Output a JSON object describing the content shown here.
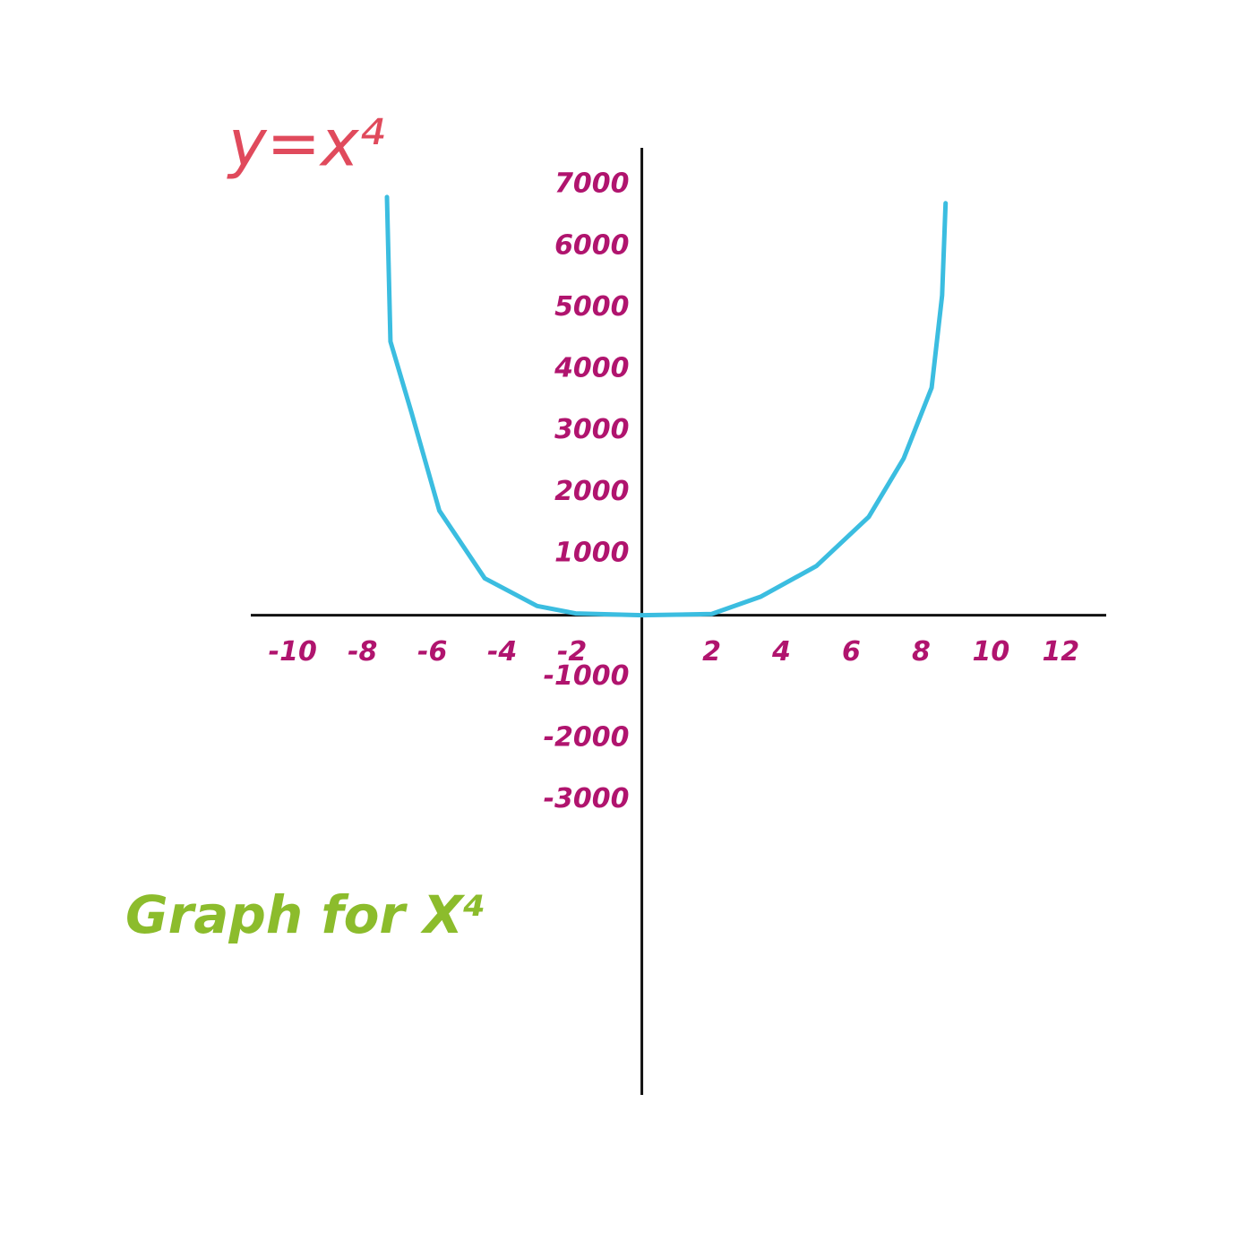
{
  "chart_data": {
    "type": "line",
    "title": "y=x⁴",
    "caption": "Graph for X⁴",
    "x": [
      -7.3,
      -7.2,
      -6.6,
      -5.8,
      -4.5,
      -3.0,
      -1.9,
      0,
      2.0,
      3.4,
      5.0,
      6.5,
      7.5,
      8.3,
      8.6,
      8.7
    ],
    "series": [
      {
        "name": "y=x⁴",
        "color": "#3bbde0",
        "values": [
          6800,
          4450,
          3300,
          1700,
          600,
          150,
          30,
          0,
          20,
          300,
          800,
          1600,
          2550,
          3700,
          5200,
          6700
        ]
      }
    ],
    "xlim": [
      -11.2,
      13.3
    ],
    "ylim": [
      -7800,
      7600
    ],
    "xticks": [
      -10,
      -8,
      -6,
      -4,
      -2,
      2,
      4,
      6,
      8,
      10,
      12
    ],
    "yticks": [
      7000,
      6000,
      5000,
      4000,
      3000,
      2000,
      1000,
      -1000,
      -2000,
      -3000
    ],
    "grid": false
  }
}
